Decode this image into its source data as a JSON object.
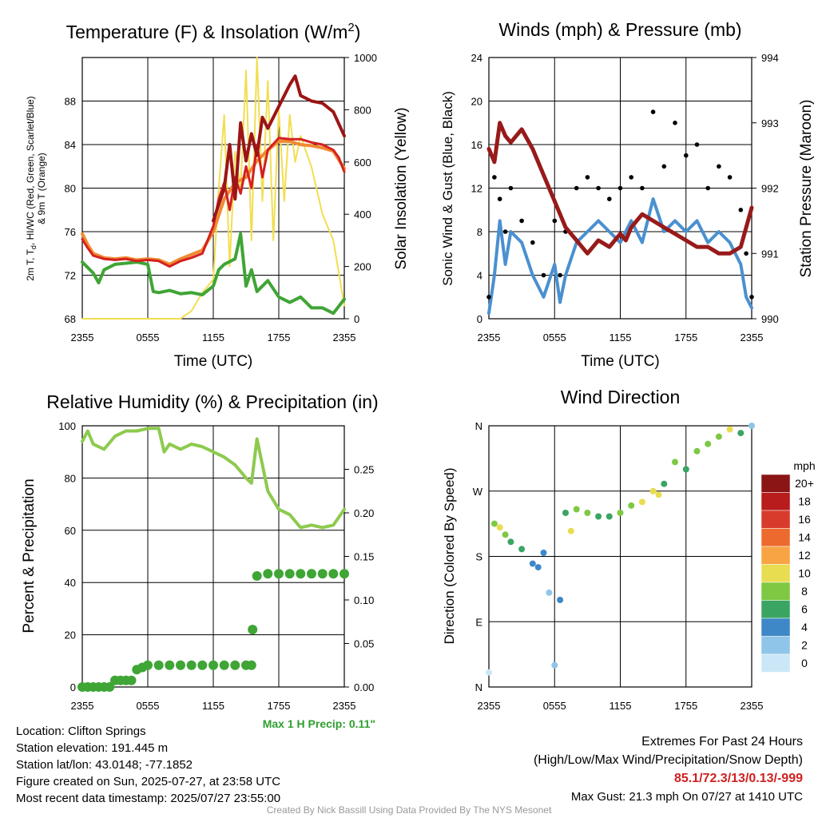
{
  "colors": {
    "temp_2m": "#d42020",
    "temp_9m": "#f08a30",
    "dewpoint": "#3fa535",
    "heat_index": "#9b1515",
    "insolation": "#f2de50",
    "wind": "#4a90d0",
    "gust": "#000000",
    "pressure": "#981a1a",
    "rh": "#8dca4e",
    "precip": "#3fa535",
    "max_precip_text": "#2e9e2e",
    "extremes_text": "#d02020",
    "credit_text": "#999999"
  },
  "chart_data": [
    {
      "type": "line",
      "title": "Temperature (F) & Insolation (W/m",
      "title_superscript": "2",
      "title_close": ")",
      "xlabel": "Time (UTC)",
      "ylabel_lines": [
        "2m T, T",
        "d",
        ", HI/WC (Red, Green, Scarlet/Blue)",
        "& 9m T (Orange)"
      ],
      "ylabel2": "Solar Insolation (Yellow)",
      "x_ticks": [
        "2355",
        "0555",
        "1155",
        "1755",
        "2355"
      ],
      "ylim": [
        68,
        92
      ],
      "y_ticks": [
        68,
        72,
        76,
        80,
        84,
        88
      ],
      "y2lim": [
        0,
        1000
      ],
      "y2_ticks": [
        0,
        200,
        400,
        600,
        800,
        1000
      ],
      "grid": true,
      "series": [
        {
          "key": "temp_2m",
          "x": [
            0,
            0.5,
            1,
            2,
            3,
            4,
            5,
            6,
            7,
            8,
            9,
            10,
            11,
            12,
            12.5,
            13,
            13.5,
            14,
            14.5,
            15,
            15.5,
            16,
            16.5,
            17,
            18,
            19,
            20,
            21,
            22,
            23,
            23.5,
            24
          ],
          "y": [
            75.3,
            74.5,
            73.8,
            73.5,
            73.4,
            73.5,
            73.3,
            73.4,
            73.3,
            72.8,
            73.3,
            73.6,
            74.0,
            76.5,
            79.0,
            80.5,
            78.0,
            81.0,
            79.5,
            82.0,
            80.0,
            84.0,
            81.0,
            83.5,
            84.6,
            84.5,
            84.5,
            84.2,
            84.0,
            83.5,
            82.8,
            81.5
          ]
        },
        {
          "key": "temp_9m",
          "x": [
            0,
            0.5,
            1,
            2,
            3,
            4,
            5,
            6,
            7,
            8,
            9,
            10,
            11,
            12,
            13,
            14,
            15,
            16,
            17,
            18,
            19,
            20,
            21,
            22,
            23,
            24
          ],
          "y": [
            75.8,
            74.8,
            74.0,
            73.6,
            73.5,
            73.6,
            73.4,
            73.5,
            73.4,
            73.0,
            73.5,
            73.9,
            74.3,
            76.0,
            79.0,
            80.5,
            81.0,
            82.5,
            83.5,
            84.3,
            84.3,
            84.0,
            83.9,
            83.7,
            83.4,
            81.8
          ]
        },
        {
          "key": "heat_index",
          "x": [
            12,
            13,
            13.5,
            14,
            14.5,
            15,
            15.5,
            16,
            16.5,
            17,
            18,
            19,
            19.5,
            20,
            21,
            22,
            23,
            24
          ],
          "y": [
            77.0,
            80.0,
            84.0,
            79.0,
            86.0,
            82.5,
            85.0,
            83.0,
            86.5,
            85.5,
            87.5,
            89.5,
            90.3,
            88.5,
            88.0,
            87.8,
            87.0,
            84.8
          ]
        },
        {
          "key": "dewpoint",
          "x": [
            0,
            1,
            1.5,
            2,
            3,
            4,
            5,
            6,
            6.5,
            7,
            8,
            9,
            10,
            11,
            12,
            12.5,
            13,
            14,
            14.5,
            15,
            15.5,
            16,
            17,
            18,
            19,
            20,
            21,
            22,
            23,
            24
          ],
          "y": [
            73.2,
            72.2,
            71.3,
            72.5,
            73.0,
            73.1,
            73.2,
            73.0,
            70.5,
            70.4,
            70.6,
            70.3,
            70.4,
            70.2,
            71.0,
            72.5,
            73.0,
            73.5,
            75.8,
            71.0,
            72.5,
            70.5,
            71.5,
            70.0,
            69.5,
            70.0,
            69.0,
            69.0,
            68.5,
            69.8
          ]
        },
        {
          "key": "insolation",
          "axis": "y2",
          "x": [
            0,
            7,
            9,
            10,
            11,
            12,
            12.5,
            13,
            13.5,
            14,
            14.5,
            15,
            15.5,
            16,
            16.5,
            17,
            17.5,
            18,
            18.5,
            19,
            19.5,
            20,
            21,
            22,
            23,
            24
          ],
          "y": [
            0,
            0,
            0,
            30,
            100,
            150,
            500,
            780,
            200,
            640,
            500,
            950,
            300,
            1000,
            450,
            910,
            300,
            800,
            450,
            780,
            600,
            700,
            580,
            400,
            300,
            50
          ]
        }
      ]
    },
    {
      "type": "line",
      "title": "Winds (mph) & Pressure (mb)",
      "xlabel": "Time (UTC)",
      "ylabel": "Sonic Wind & Gust (Blue, Black)",
      "ylabel2": "Station Pressure (Maroon)",
      "x_ticks": [
        "2355",
        "0555",
        "1155",
        "1755",
        "2355"
      ],
      "ylim": [
        0,
        24
      ],
      "y_ticks": [
        0,
        4,
        8,
        12,
        16,
        20,
        24
      ],
      "y2lim": [
        990,
        994
      ],
      "y2_ticks": [
        990,
        991,
        992,
        993,
        994
      ],
      "grid": true,
      "series": [
        {
          "key": "wind",
          "x": [
            0,
            0.5,
            1,
            1.5,
            2,
            3,
            4,
            5,
            6,
            6.5,
            7,
            8,
            9,
            10,
            11,
            12,
            13,
            14,
            15,
            16,
            17,
            18,
            19,
            20,
            21,
            22,
            23,
            23.5,
            24
          ],
          "y": [
            0.5,
            4,
            9,
            5,
            8,
            7,
            4,
            2,
            5,
            1.5,
            4,
            7,
            8,
            9,
            8,
            7,
            9,
            7,
            11,
            8,
            9,
            8,
            9,
            7,
            8,
            7,
            5,
            2,
            1
          ]
        },
        {
          "key": "gust",
          "points": true,
          "x": [
            0,
            0.5,
            1,
            1.5,
            2,
            3,
            4,
            5,
            6,
            6.5,
            7,
            8,
            9,
            10,
            11,
            12,
            13,
            14,
            15,
            16,
            17,
            18,
            19,
            20,
            21,
            22,
            23,
            23.5,
            24
          ],
          "y": [
            2,
            13,
            11,
            8,
            12,
            9,
            7,
            4,
            9,
            4,
            8,
            12,
            13,
            12,
            11,
            12,
            13,
            12,
            19,
            14,
            18,
            15,
            16,
            12,
            14,
            13,
            10,
            6,
            2
          ]
        },
        {
          "key": "pressure",
          "axis": "y2",
          "x": [
            0,
            0.5,
            1,
            1.5,
            2,
            3,
            4,
            5,
            6,
            7,
            8,
            9,
            10,
            11,
            12,
            12.5,
            13,
            14,
            15,
            16,
            17,
            18,
            19,
            20,
            21,
            22,
            23,
            24
          ],
          "y": [
            992.6,
            992.4,
            993.0,
            992.8,
            992.7,
            992.9,
            992.6,
            992.2,
            991.8,
            991.4,
            991.2,
            991.0,
            991.2,
            991.1,
            991.3,
            991.2,
            991.4,
            991.6,
            991.5,
            991.4,
            991.3,
            991.2,
            991.1,
            991.1,
            991.0,
            991.0,
            991.1,
            991.7
          ]
        }
      ]
    },
    {
      "type": "line",
      "title": "Relative Humidity (%) & Precipitation (in)",
      "ylabel": "Percent & Precipitation",
      "x_ticks": [
        "2355",
        "0555",
        "1155",
        "1755",
        "2355"
      ],
      "ylim": [
        0,
        100
      ],
      "y_ticks": [
        0,
        20,
        40,
        60,
        80,
        100
      ],
      "y2lim": [
        0,
        0.3
      ],
      "y2_ticks": [
        0.0,
        0.05,
        0.1,
        0.15,
        0.2,
        0.25
      ],
      "y2_tick_labels": [
        "0.00",
        "0.05",
        "0.10",
        "0.15",
        "0.20",
        "0.25"
      ],
      "grid": true,
      "series": [
        {
          "key": "rh",
          "x": [
            0,
            0.5,
            1,
            1.5,
            2,
            3,
            4,
            5,
            6,
            7,
            7.5,
            8,
            9,
            10,
            11,
            12,
            13,
            14,
            15,
            15.5,
            16,
            16.5,
            17,
            18,
            19,
            20,
            21,
            22,
            23,
            24
          ],
          "y": [
            94,
            98,
            93,
            92,
            91,
            96,
            98,
            98,
            99,
            99,
            90,
            93,
            91,
            93,
            92,
            90,
            88,
            85,
            80,
            78,
            95,
            85,
            75,
            68,
            66,
            61,
            62,
            61,
            62,
            68
          ]
        },
        {
          "key": "precip",
          "axis": "y2",
          "points": true,
          "x": [
            0,
            0.5,
            1,
            1.5,
            2,
            2.5,
            3,
            3.5,
            4,
            4.5,
            5,
            5.5,
            6,
            7,
            8,
            9,
            10,
            11,
            12,
            13,
            14,
            15,
            15.5,
            15.6,
            16,
            17,
            18,
            19,
            20,
            21,
            22,
            23,
            24
          ],
          "y": [
            0.0,
            0.0,
            0.0,
            0.0,
            0.0,
            0.0,
            0.0075,
            0.0075,
            0.0075,
            0.0075,
            0.02,
            0.0225,
            0.025,
            0.025,
            0.025,
            0.025,
            0.025,
            0.025,
            0.025,
            0.025,
            0.025,
            0.025,
            0.025,
            0.066,
            0.1275,
            0.13,
            0.13,
            0.13,
            0.13,
            0.13,
            0.13,
            0.13,
            0.13
          ]
        }
      ]
    },
    {
      "type": "scatter",
      "title": "Wind Direction",
      "ylabel": "Direction (Colored By Speed)",
      "x_ticks": [
        "2355",
        "0555",
        "1155",
        "1755",
        "2355"
      ],
      "ylim": [
        0,
        360
      ],
      "y_ticks": [
        0,
        90,
        180,
        270,
        360
      ],
      "y_tick_labels": [
        "N",
        "E",
        "S",
        "W",
        "N"
      ],
      "grid": true,
      "x": [
        0,
        0.5,
        1,
        1.5,
        2,
        3,
        4,
        4.5,
        5,
        5.5,
        6,
        6.5,
        7,
        7.5,
        8,
        9,
        10,
        11,
        12,
        13,
        14,
        15,
        15.5,
        16,
        17,
        18,
        19,
        20,
        21,
        22,
        23,
        24
      ],
      "y": [
        20,
        225,
        220,
        210,
        200,
        190,
        170,
        165,
        185,
        130,
        30,
        120,
        240,
        215,
        245,
        240,
        235,
        235,
        240,
        250,
        255,
        270,
        265,
        280,
        310,
        300,
        325,
        335,
        345,
        355,
        350,
        360
      ],
      "speed": [
        1,
        8,
        10,
        9,
        7,
        6,
        4,
        4,
        5,
        3,
        2,
        4,
        6,
        10,
        8,
        9,
        7,
        6,
        8,
        9,
        10,
        11,
        10,
        7,
        9,
        7,
        9,
        8,
        9,
        10,
        6,
        3
      ],
      "legend": {
        "title": "mph",
        "levels": [
          "20+",
          "18",
          "16",
          "14",
          "12",
          "10",
          "8",
          "6",
          "4",
          "2",
          "0"
        ],
        "colors": [
          "#8b1515",
          "#b81c1c",
          "#d83b2c",
          "#ed6a2e",
          "#f8a445",
          "#e8dc50",
          "#7ec844",
          "#3aa562",
          "#3e88c8",
          "#8fc5e8",
          "#cbe7f7"
        ]
      }
    }
  ],
  "precip_summary": "Max 1 H Precip: 0.11\"",
  "station_info": {
    "location": "Location: Clifton Springs",
    "elevation": "Station elevation: 191.445 m",
    "latlon": "Station lat/lon: 43.0148; -77.1852",
    "created": "Figure created on Sun, 2025-07-27, at 23:58 UTC",
    "recent": "Most recent data timestamp: 2025/07/27 23:55:00"
  },
  "extremes": {
    "heading": "Extremes For Past 24 Hours",
    "subheading": "(High/Low/Max Wind/Precipitation/Snow Depth)",
    "values": "85.1/72.3/13/0.13/-999",
    "max_gust": "Max Gust: 21.3 mph On 07/27 at 1410 UTC"
  },
  "credit": "Created By Nick Bassill Using Data Provided By The NYS Mesonet"
}
